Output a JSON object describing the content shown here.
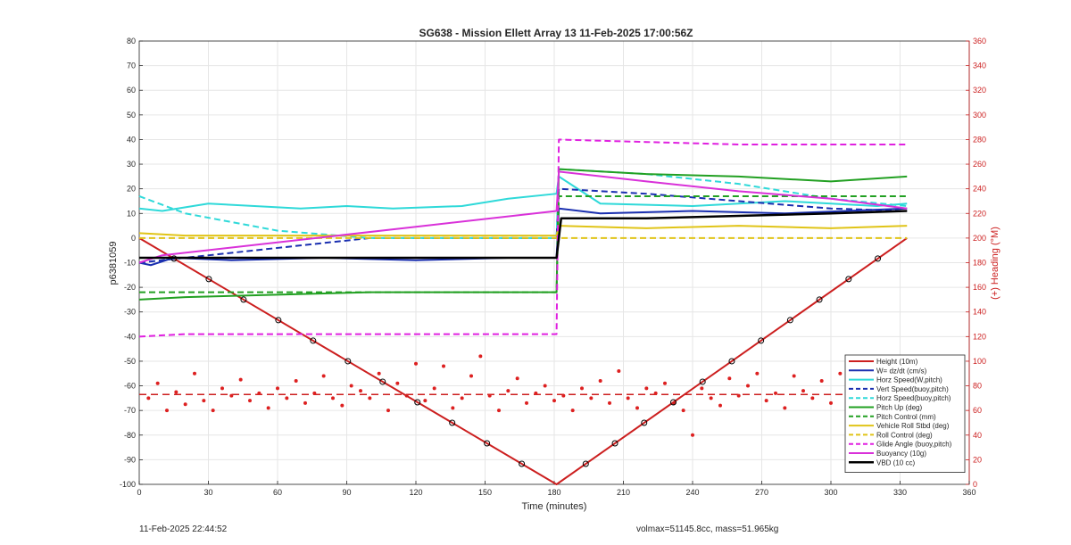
{
  "chart_data": {
    "type": "line",
    "title": "SG638 - Mission Ellett Array 13 11-Feb-2025 17:00:56Z",
    "xlabel": "Time (minutes)",
    "ylabel": "p6381059",
    "ylabel_right": "(+) Heading (°M)",
    "xlim": [
      0,
      360
    ],
    "ylim": [
      -100,
      80
    ],
    "ylim_right": [
      0,
      360
    ],
    "xticks": [
      0,
      30,
      60,
      90,
      120,
      150,
      180,
      210,
      240,
      270,
      300,
      330,
      360
    ],
    "yticks": [
      -100,
      -90,
      -80,
      -70,
      -60,
      -50,
      -40,
      -30,
      -20,
      -10,
      0,
      10,
      20,
      30,
      40,
      50,
      60,
      70,
      80
    ],
    "yticks_right": [
      0,
      20,
      40,
      60,
      80,
      100,
      120,
      140,
      160,
      180,
      200,
      220,
      240,
      260,
      280,
      300,
      320,
      340,
      360
    ],
    "grid": true,
    "legend_position": "bottom-right",
    "series": [
      {
        "name": "Height (10m)",
        "color": "#cc1f1f",
        "style": "solid",
        "width": 2,
        "x": [
          0,
          181,
          333
        ],
        "y": [
          0,
          -100,
          0
        ]
      },
      {
        "name": "W= dz/dt (cm/s)",
        "color": "#1a2fb0",
        "style": "solid",
        "width": 2,
        "x": [
          0,
          5,
          15,
          40,
          80,
          120,
          160,
          181,
          182,
          200,
          240,
          280,
          333
        ],
        "y": [
          -10,
          -11,
          -8,
          -9,
          -8,
          -9,
          -8,
          -8,
          12,
          10,
          11,
          10,
          12
        ]
      },
      {
        "name": "Horz Speed(W,pitch)",
        "color": "#2fd9d9",
        "style": "solid",
        "width": 2,
        "x": [
          0,
          10,
          30,
          50,
          70,
          90,
          110,
          140,
          160,
          181,
          182,
          200,
          240,
          280,
          320,
          333
        ],
        "y": [
          12,
          11,
          14,
          13,
          12,
          13,
          12,
          13,
          16,
          18,
          25,
          14,
          13,
          15,
          13,
          14
        ]
      },
      {
        "name": "Vert Speed(buoy,pitch)",
        "color": "#1a2fb0",
        "style": "dashed",
        "width": 2,
        "x": [
          0,
          20,
          60,
          100,
          140,
          181,
          182,
          220,
          260,
          300,
          333
        ],
        "y": [
          -10,
          -8,
          -4,
          0,
          0,
          0,
          20,
          18,
          15,
          12,
          11
        ]
      },
      {
        "name": "Horz Speed(buoy,pitch)",
        "color": "#2fd9d9",
        "style": "dashed",
        "width": 2,
        "x": [
          0,
          20,
          60,
          100,
          140,
          181,
          182,
          220,
          260,
          300,
          333
        ],
        "y": [
          17,
          10,
          3,
          0,
          0,
          0,
          28,
          26,
          22,
          16,
          13
        ]
      },
      {
        "name": "Pitch Up (deg)",
        "color": "#22a022",
        "style": "solid",
        "width": 2,
        "x": [
          0,
          20,
          60,
          100,
          140,
          181,
          182,
          220,
          260,
          300,
          333
        ],
        "y": [
          -25,
          -24,
          -23,
          -22,
          -22,
          -22,
          28,
          26,
          25,
          23,
          25
        ]
      },
      {
        "name": "Pitch Control (mm)",
        "color": "#22a022",
        "style": "dashed",
        "width": 2,
        "x": [
          0,
          181,
          182,
          333
        ],
        "y": [
          -22,
          -22,
          17,
          17
        ]
      },
      {
        "name": "Vehicle Roll Stbd (deg)",
        "color": "#e0c418",
        "style": "solid",
        "width": 2,
        "x": [
          0,
          20,
          60,
          100,
          140,
          181,
          182,
          220,
          260,
          300,
          333
        ],
        "y": [
          2,
          1,
          1,
          1,
          1,
          1,
          5,
          4,
          5,
          4,
          5
        ]
      },
      {
        "name": "Roll Control (deg)",
        "color": "#e0c418",
        "style": "dashed",
        "width": 2,
        "x": [
          0,
          181,
          182,
          333
        ],
        "y": [
          0,
          0,
          0,
          0
        ]
      },
      {
        "name": "Glide Angle (buoy,pitch)",
        "color": "#e020e0",
        "style": "dashed",
        "width": 2,
        "x": [
          0,
          20,
          60,
          100,
          140,
          181,
          182,
          220,
          260,
          300,
          333
        ],
        "y": [
          -40,
          -39,
          -39,
          -39,
          -39,
          -39,
          40,
          39,
          38,
          38,
          38
        ]
      },
      {
        "name": "Buoyancy (10g)",
        "color": "#d931d9",
        "style": "solid",
        "width": 2,
        "x": [
          0,
          10,
          181,
          182,
          220,
          260,
          300,
          333
        ],
        "y": [
          -10,
          -7,
          11,
          27,
          23,
          19,
          16,
          12
        ]
      },
      {
        "name": "VBD (10 cc)",
        "color": "#000000",
        "style": "solid",
        "width": 2.5,
        "x": [
          0,
          2,
          181,
          183,
          220,
          260,
          300,
          333
        ],
        "y": [
          -8,
          -8,
          -8,
          8,
          8,
          9,
          10,
          11
        ]
      }
    ],
    "heading_mean": 73,
    "heading_points": [
      [
        4,
        70
      ],
      [
        8,
        82
      ],
      [
        12,
        60
      ],
      [
        16,
        75
      ],
      [
        20,
        65
      ],
      [
        24,
        90
      ],
      [
        28,
        68
      ],
      [
        32,
        60
      ],
      [
        36,
        78
      ],
      [
        40,
        72
      ],
      [
        44,
        85
      ],
      [
        48,
        68
      ],
      [
        52,
        74
      ],
      [
        56,
        62
      ],
      [
        60,
        78
      ],
      [
        64,
        70
      ],
      [
        68,
        84
      ],
      [
        72,
        66
      ],
      [
        76,
        74
      ],
      [
        80,
        88
      ],
      [
        84,
        70
      ],
      [
        88,
        64
      ],
      [
        92,
        80
      ],
      [
        96,
        76
      ],
      [
        100,
        70
      ],
      [
        104,
        90
      ],
      [
        108,
        60
      ],
      [
        112,
        82
      ],
      [
        116,
        72
      ],
      [
        120,
        98
      ],
      [
        124,
        68
      ],
      [
        128,
        78
      ],
      [
        132,
        96
      ],
      [
        136,
        62
      ],
      [
        140,
        70
      ],
      [
        144,
        88
      ],
      [
        148,
        104
      ],
      [
        152,
        72
      ],
      [
        156,
        60
      ],
      [
        160,
        76
      ],
      [
        164,
        86
      ],
      [
        168,
        66
      ],
      [
        172,
        74
      ],
      [
        176,
        80
      ],
      [
        180,
        68
      ],
      [
        184,
        72
      ],
      [
        188,
        60
      ],
      [
        192,
        78
      ],
      [
        196,
        70
      ],
      [
        200,
        84
      ],
      [
        204,
        66
      ],
      [
        208,
        92
      ],
      [
        212,
        70
      ],
      [
        216,
        62
      ],
      [
        220,
        78
      ],
      [
        224,
        74
      ],
      [
        228,
        82
      ],
      [
        232,
        66
      ],
      [
        236,
        60
      ],
      [
        240,
        40
      ],
      [
        244,
        78
      ],
      [
        248,
        70
      ],
      [
        252,
        64
      ],
      [
        256,
        86
      ],
      [
        260,
        72
      ],
      [
        264,
        80
      ],
      [
        268,
        90
      ],
      [
        272,
        68
      ],
      [
        276,
        74
      ],
      [
        280,
        62
      ],
      [
        284,
        88
      ],
      [
        288,
        76
      ],
      [
        292,
        70
      ],
      [
        296,
        84
      ],
      [
        300,
        66
      ],
      [
        304,
        90
      ],
      [
        308,
        72
      ],
      [
        312,
        80
      ],
      [
        316,
        60
      ],
      [
        320,
        74
      ],
      [
        324,
        86
      ],
      [
        328,
        70
      ],
      [
        332,
        80
      ]
    ]
  },
  "footer": {
    "timestamp": "11-Feb-2025 22:44:52",
    "volmax_mass": "volmax=51145.8cc, mass=51.965kg"
  }
}
